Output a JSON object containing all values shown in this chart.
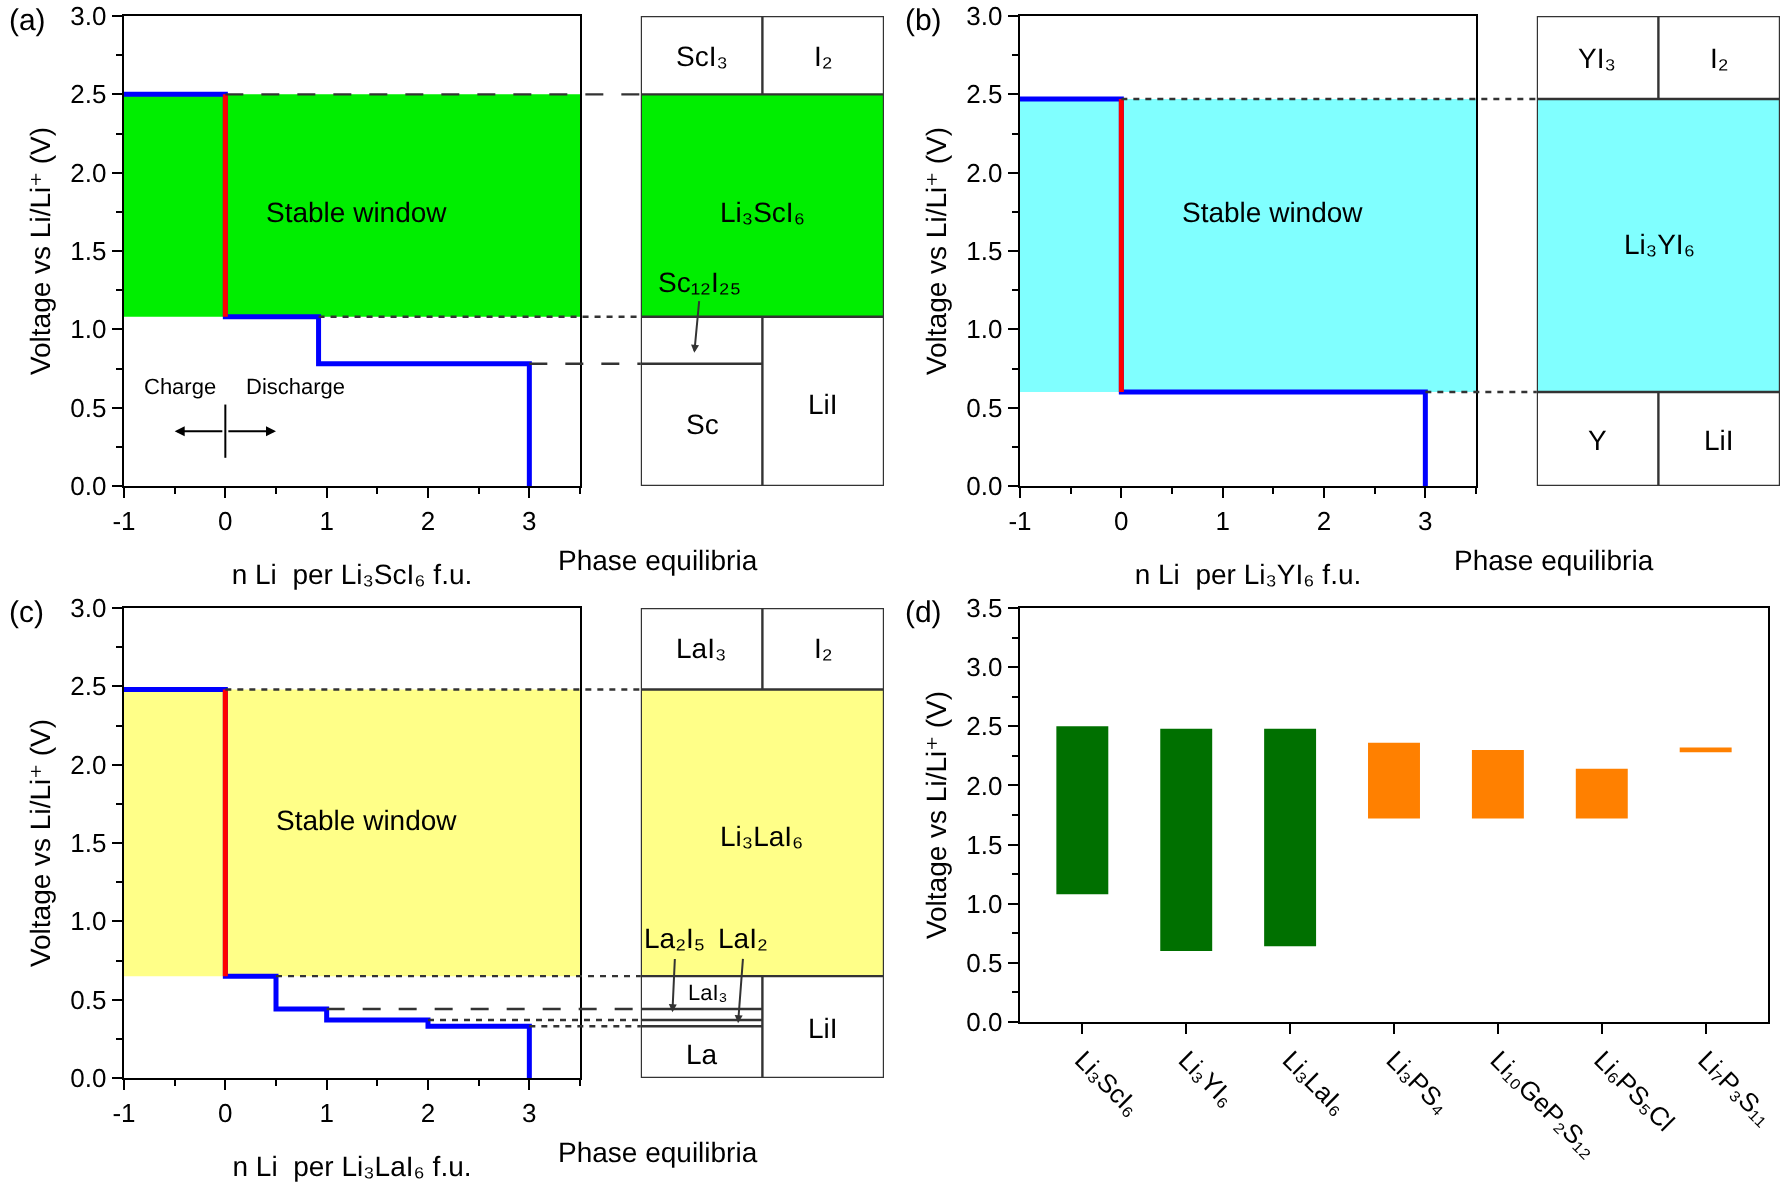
{
  "chart_data": [
    {
      "type": "line",
      "title": "(a)",
      "xlabel": "n Li  per Li₃ScI₆ f.u.",
      "ylabel": "Voltage vs Li/Li⁺ (V)",
      "xlim": [
        -1,
        3.5
      ],
      "xticks": [
        -1,
        0,
        1,
        2,
        3
      ],
      "ylim": [
        0,
        3
      ],
      "yticks": [
        {
          "value": 0,
          "label": "0.0"
        },
        {
          "value": 0.5,
          "label": "0.5"
        },
        {
          "value": 1,
          "label": "1.0"
        },
        {
          "value": 1.5,
          "label": "1.5"
        },
        {
          "value": 2,
          "label": "2.0"
        },
        {
          "value": 2.5,
          "label": "2.5"
        },
        {
          "value": 3,
          "label": "3.0"
        }
      ],
      "series": [
        {
          "color": "#0000ff",
          "x": [
            -1,
            0,
            0,
            0.92,
            0.92,
            3,
            3
          ],
          "values": [
            2.5,
            2.5,
            1.08,
            1.08,
            0.78,
            0.78,
            0
          ]
        },
        {
          "color": "#ff0000",
          "x": [
            0,
            0
          ],
          "values": [
            2.5,
            1.08
          ]
        }
      ],
      "bands": [
        {
          "axis": "y",
          "from": 1.08,
          "to": 2.5,
          "color": "#00ee00"
        }
      ],
      "ref_lines": [
        {
          "axis": "y",
          "value": 2.5,
          "line_style": "dashed"
        },
        {
          "axis": "y",
          "value": 1.08,
          "line_style": "dotted"
        },
        {
          "axis": "y",
          "value": 0.78,
          "line_style": "dashed"
        }
      ],
      "annotations": [
        "Stable window",
        "Charge",
        "Discharge",
        "Phase equilibria",
        "ScI₃",
        "I₂",
        "Li₃ScI₆",
        "Sc₁₂I₂₅",
        "Sc",
        "LiI"
      ]
    },
    {
      "type": "line",
      "title": "(b)",
      "xlabel": "n Li  per Li₃YI₆ f.u.",
      "ylabel": "Voltage vs Li/Li⁺ (V)",
      "xlim": [
        -1,
        3.5
      ],
      "xticks": [
        -1,
        0,
        1,
        2,
        3
      ],
      "ylim": [
        0,
        3
      ],
      "yticks": [
        {
          "value": 0,
          "label": "0.0"
        },
        {
          "value": 0.5,
          "label": "0.5"
        },
        {
          "value": 1,
          "label": "1.0"
        },
        {
          "value": 1.5,
          "label": "1.5"
        },
        {
          "value": 2,
          "label": "2.0"
        },
        {
          "value": 2.5,
          "label": "2.5"
        },
        {
          "value": 3,
          "label": "3.0"
        }
      ],
      "series": [
        {
          "color": "#0000ff",
          "x": [
            -1,
            0,
            0,
            3,
            3
          ],
          "values": [
            2.47,
            2.47,
            0.6,
            0.6,
            0
          ]
        },
        {
          "color": "#ff0000",
          "x": [
            0,
            0
          ],
          "values": [
            2.47,
            0.6
          ]
        }
      ],
      "bands": [
        {
          "axis": "y",
          "from": 0.6,
          "to": 2.47,
          "color": "#80ffff"
        }
      ],
      "ref_lines": [
        {
          "axis": "y",
          "value": 2.47,
          "line_style": "dotted"
        },
        {
          "axis": "y",
          "value": 0.6,
          "line_style": "dotted"
        }
      ],
      "annotations": [
        "Stable window",
        "Phase equilibria",
        "YI₃",
        "I₂",
        "Li₃YI₆",
        "Y",
        "LiI"
      ]
    },
    {
      "type": "line",
      "title": "(c)",
      "xlabel": "n Li  per Li₃LaI₆ f.u.",
      "ylabel": "Voltage vs Li/Li⁺ (V)",
      "xlim": [
        -1,
        3.5
      ],
      "xticks": [
        -1,
        0,
        1,
        2,
        3
      ],
      "ylim": [
        0,
        3
      ],
      "yticks": [
        {
          "value": 0,
          "label": "0.0"
        },
        {
          "value": 0.5,
          "label": "0.5"
        },
        {
          "value": 1,
          "label": "1.0"
        },
        {
          "value": 1.5,
          "label": "1.5"
        },
        {
          "value": 2,
          "label": "2.0"
        },
        {
          "value": 2.5,
          "label": "2.5"
        },
        {
          "value": 3,
          "label": "3.0"
        }
      ],
      "series": [
        {
          "color": "#0000ff",
          "x": [
            -1,
            0,
            0,
            0.5,
            0.5,
            1,
            1,
            2,
            2,
            3,
            3
          ],
          "values": [
            2.48,
            2.48,
            0.65,
            0.65,
            0.44,
            0.44,
            0.37,
            0.37,
            0.33,
            0.33,
            0
          ]
        },
        {
          "color": "#ff0000",
          "x": [
            0,
            0
          ],
          "values": [
            2.48,
            0.65
          ]
        }
      ],
      "bands": [
        {
          "axis": "y",
          "from": 0.65,
          "to": 2.48,
          "color": "#ffff88"
        }
      ],
      "ref_lines": [
        {
          "axis": "y",
          "value": 2.48,
          "line_style": "dotted"
        },
        {
          "axis": "y",
          "value": 0.65,
          "line_style": "dotted"
        },
        {
          "axis": "y",
          "value": 0.44,
          "line_style": "dashed"
        },
        {
          "axis": "y",
          "value": 0.37,
          "line_style": "dotted"
        },
        {
          "axis": "y",
          "value": 0.33,
          "line_style": "dotted"
        }
      ],
      "annotations": [
        "Stable window",
        "Phase equilibria",
        "LaI₃",
        "I₂",
        "Li₃LaI₆",
        "La₂I₅",
        "LaI₂",
        "LaI₃",
        "La",
        "LiI"
      ]
    },
    {
      "type": "bar",
      "title": "(d)",
      "ylabel": "Voltage vs Li/Li⁺ (V)",
      "categories": [
        "Li₃ScI₆",
        "Li₃YI₆",
        "Li₃LaI₆",
        "Li₃PS₄",
        "Li₁₀GeP₂S₁₂",
        "Li₆PS₅Cl",
        "Li₇P₃S₁₁"
      ],
      "base": [
        1.08,
        0.6,
        0.64,
        1.72,
        1.72,
        1.72,
        2.28
      ],
      "values": [
        1.42,
        1.88,
        1.84,
        0.64,
        0.58,
        0.42,
        0.04
      ],
      "colors": [
        "#007000",
        "#007000",
        "#007000",
        "#ff8000",
        "#ff8000",
        "#ff8000",
        "#ff8000"
      ],
      "ylim": [
        0,
        3.5
      ],
      "yticks": [
        {
          "value": 0,
          "label": "0.0"
        },
        {
          "value": 0.5,
          "label": "0.5"
        },
        {
          "value": 1,
          "label": "1.0"
        },
        {
          "value": 1.5,
          "label": "1.5"
        },
        {
          "value": 2,
          "label": "2.0"
        },
        {
          "value": 2.5,
          "label": "2.5"
        },
        {
          "value": 3,
          "label": "3.0"
        },
        {
          "value": 3.5,
          "label": "3.5"
        }
      ]
    }
  ]
}
